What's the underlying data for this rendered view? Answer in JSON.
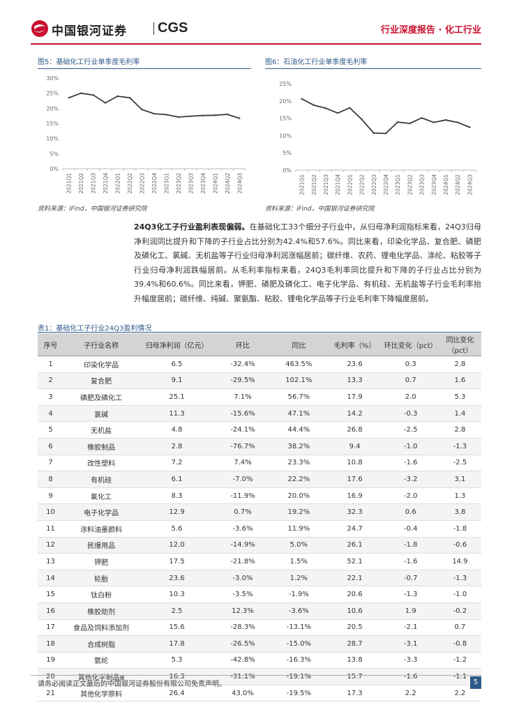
{
  "header": {
    "logo_cn": "中国银河证券",
    "logo_en": "CGS",
    "title": "行业深度报告 · 化工行业"
  },
  "figure5": {
    "title": "图5：基础化工行业单季度毛利率",
    "source": "资料来源：iFind，中国银河证券研究院"
  },
  "figure6": {
    "title": "图6：石油化工行业单季度毛利率",
    "source": "资料来源：iFind，中国银河证券研究院"
  },
  "chart_data": [
    {
      "type": "line",
      "title": "图5：基础化工行业单季度毛利率",
      "x": [
        "2021Q1",
        "2021Q2",
        "2021Q3",
        "2021Q4",
        "2022Q1",
        "2022Q2",
        "2022Q3",
        "2022Q4",
        "2023Q1",
        "2023Q2",
        "2023Q3",
        "2023Q4",
        "2024Q1",
        "2024Q2",
        "2024Q3"
      ],
      "values": [
        23.5,
        25.0,
        24.4,
        21.8,
        24.0,
        23.5,
        19.6,
        18.2,
        17.9,
        17.1,
        17.4,
        17.6,
        17.7,
        18.0,
        16.7
      ],
      "ylim": [
        0,
        30
      ],
      "yticks": [
        "0%",
        "5%",
        "10%",
        "15%",
        "20%",
        "25%",
        "30%"
      ]
    },
    {
      "type": "line",
      "title": "图6：石油化工行业单季度毛利率",
      "x": [
        "2021Q1",
        "2021Q2",
        "2021Q3",
        "2021Q4",
        "2022Q1",
        "2022Q2",
        "2022Q3",
        "2022Q4",
        "2023Q1",
        "2023Q2",
        "2023Q3",
        "2023Q4",
        "2024Q1",
        "2024Q2",
        "2024Q3"
      ],
      "values": [
        20.6,
        18.8,
        17.9,
        16.5,
        18.0,
        14.7,
        10.7,
        10.6,
        13.9,
        13.5,
        15.1,
        13.8,
        14.5,
        13.8,
        12.4
      ],
      "ylim": [
        0,
        25
      ],
      "yticks": [
        "0%",
        "5%",
        "10%",
        "15%",
        "20%",
        "25%"
      ]
    }
  ],
  "paragraph": {
    "bold": "24Q3化工子行业盈利表现偏弱。",
    "text": "在基础化工33个细分子行业中，从归母净利润指标来看，24Q3归母净利润同比提升和下降的子行业占比分别为42.4%和57.6%。同比来看，印染化学品、复合肥、磷肥及磷化工、氯碱、无机盐等子行业归母净利润涨幅居前；碳纤维、农药、锂电化学品、涤纶、粘胶等子行业归母净利润跌幅居前。从毛利率指标来看，24Q3毛利率同比提升和下降的子行业占比分别为39.4%和60.6%。同比来看，钾肥、磷肥及磷化工、电子化学品、有机硅、无机盐等子行业毛利率抬升幅度居前；碳纤维、纯碱、聚氨酯、粘胶、锂电化学品等子行业毛利率下降幅度居前。"
  },
  "table": {
    "title": "表1：基础化工子行业24Q3盈利情况",
    "headers": [
      "序号",
      "子行业名称",
      "归母净利润（亿元）",
      "环比",
      "同比",
      "毛利率（%）",
      "环比变化（pct）",
      "同比变化（pct）"
    ],
    "rows": [
      [
        "1",
        "印染化学品",
        "6.5",
        "-32.4%",
        "463.5%",
        "23.6",
        "0.3",
        "2.8"
      ],
      [
        "2",
        "复合肥",
        "9.1",
        "-29.5%",
        "102.1%",
        "13.3",
        "0.7",
        "1.6"
      ],
      [
        "3",
        "磷肥及磷化工",
        "25.1",
        "7.1%",
        "56.7%",
        "17.9",
        "2.0",
        "5.3"
      ],
      [
        "4",
        "氯碱",
        "11.3",
        "-15.6%",
        "47.1%",
        "14.2",
        "-0.3",
        "1.4"
      ],
      [
        "5",
        "无机盐",
        "4.8",
        "-24.1%",
        "44.4%",
        "26.8",
        "-2.5",
        "2.8"
      ],
      [
        "6",
        "橡胶制品",
        "2.8",
        "-76.7%",
        "38.2%",
        "9.4",
        "-1.0",
        "-1.3"
      ],
      [
        "7",
        "改性塑料",
        "7.2",
        "7.4%",
        "23.3%",
        "10.8",
        "-1.6",
        "-2.5"
      ],
      [
        "8",
        "有机硅",
        "6.1",
        "-7.0%",
        "22.2%",
        "17.6",
        "-3.2",
        "3.1"
      ],
      [
        "9",
        "氟化工",
        "8.3",
        "-11.9%",
        "20.0%",
        "16.9",
        "-2.0",
        "1.3"
      ],
      [
        "10",
        "电子化学品",
        "12.9",
        "0.7%",
        "19.2%",
        "32.3",
        "0.6",
        "3.8"
      ],
      [
        "11",
        "涂料油墨颜料",
        "5.6",
        "-3.6%",
        "11.9%",
        "24.7",
        "-0.4",
        "-1.8"
      ],
      [
        "12",
        "民爆用品",
        "12.0",
        "-14.9%",
        "5.0%",
        "26.1",
        "-1.8",
        "-0.6"
      ],
      [
        "13",
        "钾肥",
        "17.5",
        "-21.8%",
        "1.5%",
        "52.1",
        "-1.6",
        "14.9"
      ],
      [
        "14",
        "轮胎",
        "23.6",
        "-3.0%",
        "1.2%",
        "22.1",
        "-0.7",
        "-1.3"
      ],
      [
        "15",
        "钛白粉",
        "10.3",
        "-3.5%",
        "-1.9%",
        "20.6",
        "-1.3",
        "-1.0"
      ],
      [
        "16",
        "橡胶助剂",
        "2.5",
        "12.3%",
        "-3.6%",
        "10.6",
        "1.9",
        "-0.2"
      ],
      [
        "17",
        "食品及饲料添加剂",
        "15.6",
        "-28.3%",
        "-13.1%",
        "20.5",
        "-2.1",
        "0.7"
      ],
      [
        "18",
        "合成树脂",
        "17.8",
        "-26.5%",
        "-15.0%",
        "28.7",
        "-3.1",
        "-0.8"
      ],
      [
        "19",
        "氨纶",
        "5.3",
        "-42.8%",
        "-16.3%",
        "13.8",
        "-3.3",
        "-1.2"
      ],
      [
        "20",
        "其他化学制品Ⅲ",
        "16.3",
        "-31.1%",
        "-19.1%",
        "15.7",
        "-1.6",
        "-1.1"
      ],
      [
        "21",
        "其他化学原料",
        "26.4",
        "43.0%",
        "-19.5%",
        "17.3",
        "2.2",
        "2.2"
      ]
    ]
  },
  "footer": {
    "note": "请务必阅读正文最后的中国银河证券股份有限公司免责声明。",
    "page": "5"
  },
  "colors": {
    "brand_red": "#c8102e",
    "accent_blue": "#2e5a8a",
    "line": "#3a3a3a"
  }
}
